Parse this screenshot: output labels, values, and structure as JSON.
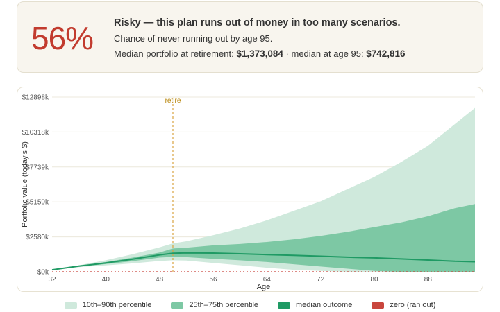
{
  "summary": {
    "probability": "56%",
    "verdict": "Risky — this plan runs out of money in too many scenarios.",
    "chance_text": "Chance of never running out by age 95.",
    "median_retirement_label": "Median portfolio at retirement:",
    "median_retirement_value": "$1,373,084",
    "separator": "·",
    "median_95_label": "median at age 95:",
    "median_95_value": "$742,816"
  },
  "colors": {
    "band_10_90": "#cfe9dc",
    "band_25_75": "#7dc8a4",
    "median": "#1f9a64",
    "zero": "#c9463d",
    "retire_line": "#d9a441"
  },
  "chart_data": {
    "type": "area",
    "xlabel": "Age",
    "ylabel": "Portfolio value (today's $)",
    "xlim": [
      32,
      95
    ],
    "ylim": [
      0,
      12898
    ],
    "x_ticks": [
      32,
      40,
      48,
      56,
      64,
      72,
      80,
      88
    ],
    "y_ticks": [
      0,
      2580,
      5159,
      7739,
      10318,
      12898
    ],
    "y_tick_labels": [
      "$0k",
      "$2580k",
      "$5159k",
      "$7739k",
      "$10318k",
      "$12898k"
    ],
    "retire_age": 50,
    "retire_label": "retire",
    "x": [
      32,
      36,
      40,
      44,
      48,
      50,
      52,
      56,
      60,
      64,
      68,
      72,
      76,
      80,
      84,
      88,
      92,
      95
    ],
    "series": [
      {
        "name": "10th–90th percentile",
        "role": "p90",
        "values": [
          150,
          480,
          850,
          1300,
          1800,
          2100,
          2250,
          2700,
          3200,
          3800,
          4500,
          5200,
          6100,
          7000,
          8100,
          9300,
          10900,
          12100
        ]
      },
      {
        "name": "25th–75th percentile",
        "role": "p75",
        "values": [
          150,
          440,
          720,
          1050,
          1420,
          1720,
          1780,
          1950,
          2050,
          2200,
          2400,
          2650,
          2950,
          3300,
          3650,
          4100,
          4700,
          5000
        ]
      },
      {
        "name": "median outcome",
        "role": "p50",
        "values": [
          150,
          420,
          650,
          930,
          1250,
          1373,
          1390,
          1380,
          1330,
          1270,
          1220,
          1150,
          1080,
          1030,
          950,
          870,
          780,
          743
        ]
      },
      {
        "name": "25th–75th percentile",
        "role": "p25",
        "values": [
          150,
          390,
          570,
          790,
          1050,
          1100,
          1080,
          960,
          850,
          720,
          560,
          390,
          230,
          60,
          0,
          0,
          0,
          0
        ]
      },
      {
        "name": "10th–90th percentile",
        "role": "p10",
        "values": [
          150,
          350,
          470,
          620,
          800,
          850,
          830,
          650,
          480,
          300,
          150,
          60,
          0,
          0,
          0,
          0,
          0,
          0
        ]
      }
    ]
  },
  "legend": [
    {
      "label": "10th–90th percentile",
      "color_key": "band_10_90"
    },
    {
      "label": "25th–75th percentile",
      "color_key": "band_25_75"
    },
    {
      "label": "median outcome",
      "color_key": "median"
    },
    {
      "label": "zero (ran out)",
      "color_key": "zero"
    }
  ]
}
